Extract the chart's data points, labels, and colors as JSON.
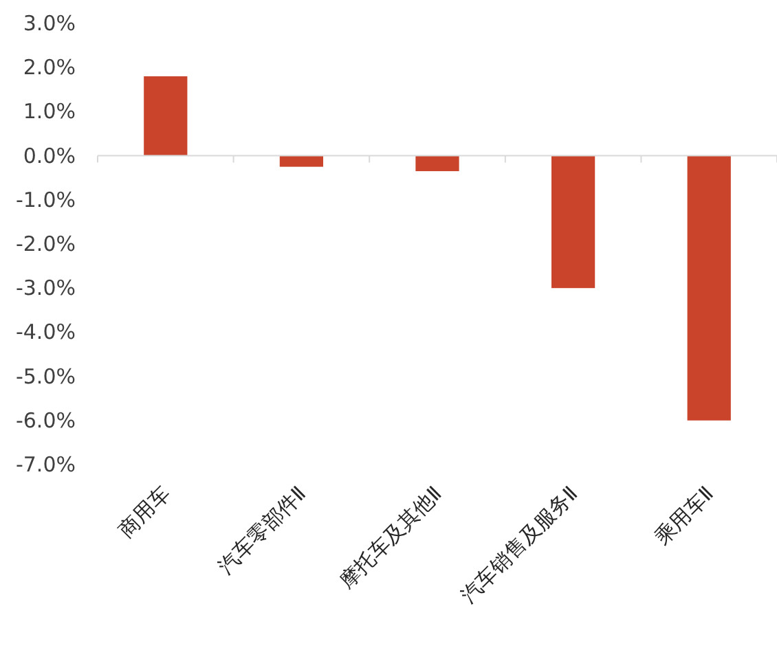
{
  "chart_data": {
    "type": "bar",
    "categories": [
      "商用车",
      "汽车零部件Ⅱ",
      "摩托车及其他Ⅱ",
      "汽车销售及服务Ⅱ",
      "乘用车Ⅱ"
    ],
    "values": [
      1.8,
      -0.25,
      -0.35,
      -3.0,
      -6.0
    ],
    "color": "#c9442a",
    "ylim": [
      -7,
      3
    ],
    "yticks": [
      {
        "value": 3,
        "label": "3.0%"
      },
      {
        "value": 2,
        "label": "2.0%"
      },
      {
        "value": 1,
        "label": "1.0%"
      },
      {
        "value": 0,
        "label": "0.0%"
      },
      {
        "value": -1,
        "label": "-1.0%"
      },
      {
        "value": -2,
        "label": "-2.0%"
      },
      {
        "value": -3,
        "label": "-3.0%"
      },
      {
        "value": -4,
        "label": "-4.0%"
      },
      {
        "value": -5,
        "label": "-5.0%"
      },
      {
        "value": -6,
        "label": "-6.0%"
      },
      {
        "value": -7,
        "label": "-7.0%"
      }
    ]
  }
}
